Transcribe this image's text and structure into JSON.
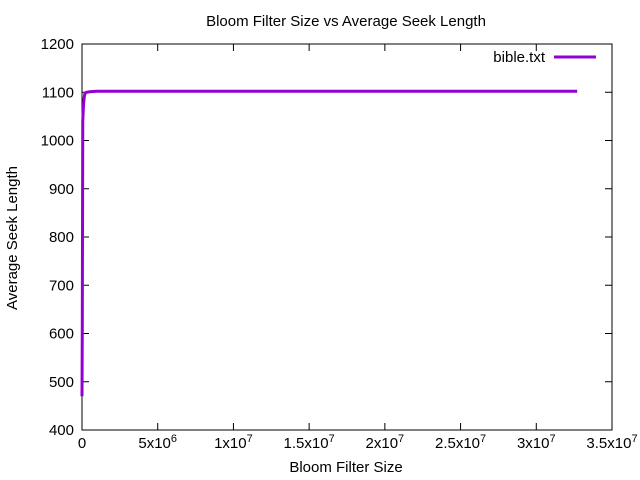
{
  "chart_data": {
    "type": "line",
    "title": "Bloom Filter Size vs Average Seek Length",
    "xlabel": "Bloom Filter Size",
    "ylabel": "Average Seek Length",
    "xlim": [
      0,
      35000000
    ],
    "ylim": [
      400,
      1200
    ],
    "x_ticks": [
      {
        "value": 0,
        "label": "0",
        "exp": ""
      },
      {
        "value": 5000000,
        "label": "5x10",
        "exp": "6"
      },
      {
        "value": 10000000,
        "label": "1x10",
        "exp": "7"
      },
      {
        "value": 15000000,
        "label": "1.5x10",
        "exp": "7"
      },
      {
        "value": 20000000,
        "label": "2x10",
        "exp": "7"
      },
      {
        "value": 25000000,
        "label": "2.5x10",
        "exp": "7"
      },
      {
        "value": 30000000,
        "label": "3x10",
        "exp": "7"
      },
      {
        "value": 35000000,
        "label": "3.5x10",
        "exp": "7"
      }
    ],
    "y_ticks": [
      400,
      500,
      600,
      700,
      800,
      900,
      1000,
      1100,
      1200
    ],
    "grid": false,
    "legend_position": "top-right",
    "series": [
      {
        "name": "bible.txt",
        "color": "#9400d3",
        "x": [
          0,
          20000,
          50000,
          100000,
          150000,
          200000,
          300000,
          500000,
          1000000,
          5000000,
          10000000,
          20000000,
          32700000
        ],
        "y": [
          470,
          620,
          1040,
          1075,
          1090,
          1098,
          1100,
          1101,
          1102,
          1102,
          1102,
          1102,
          1102
        ]
      }
    ]
  }
}
